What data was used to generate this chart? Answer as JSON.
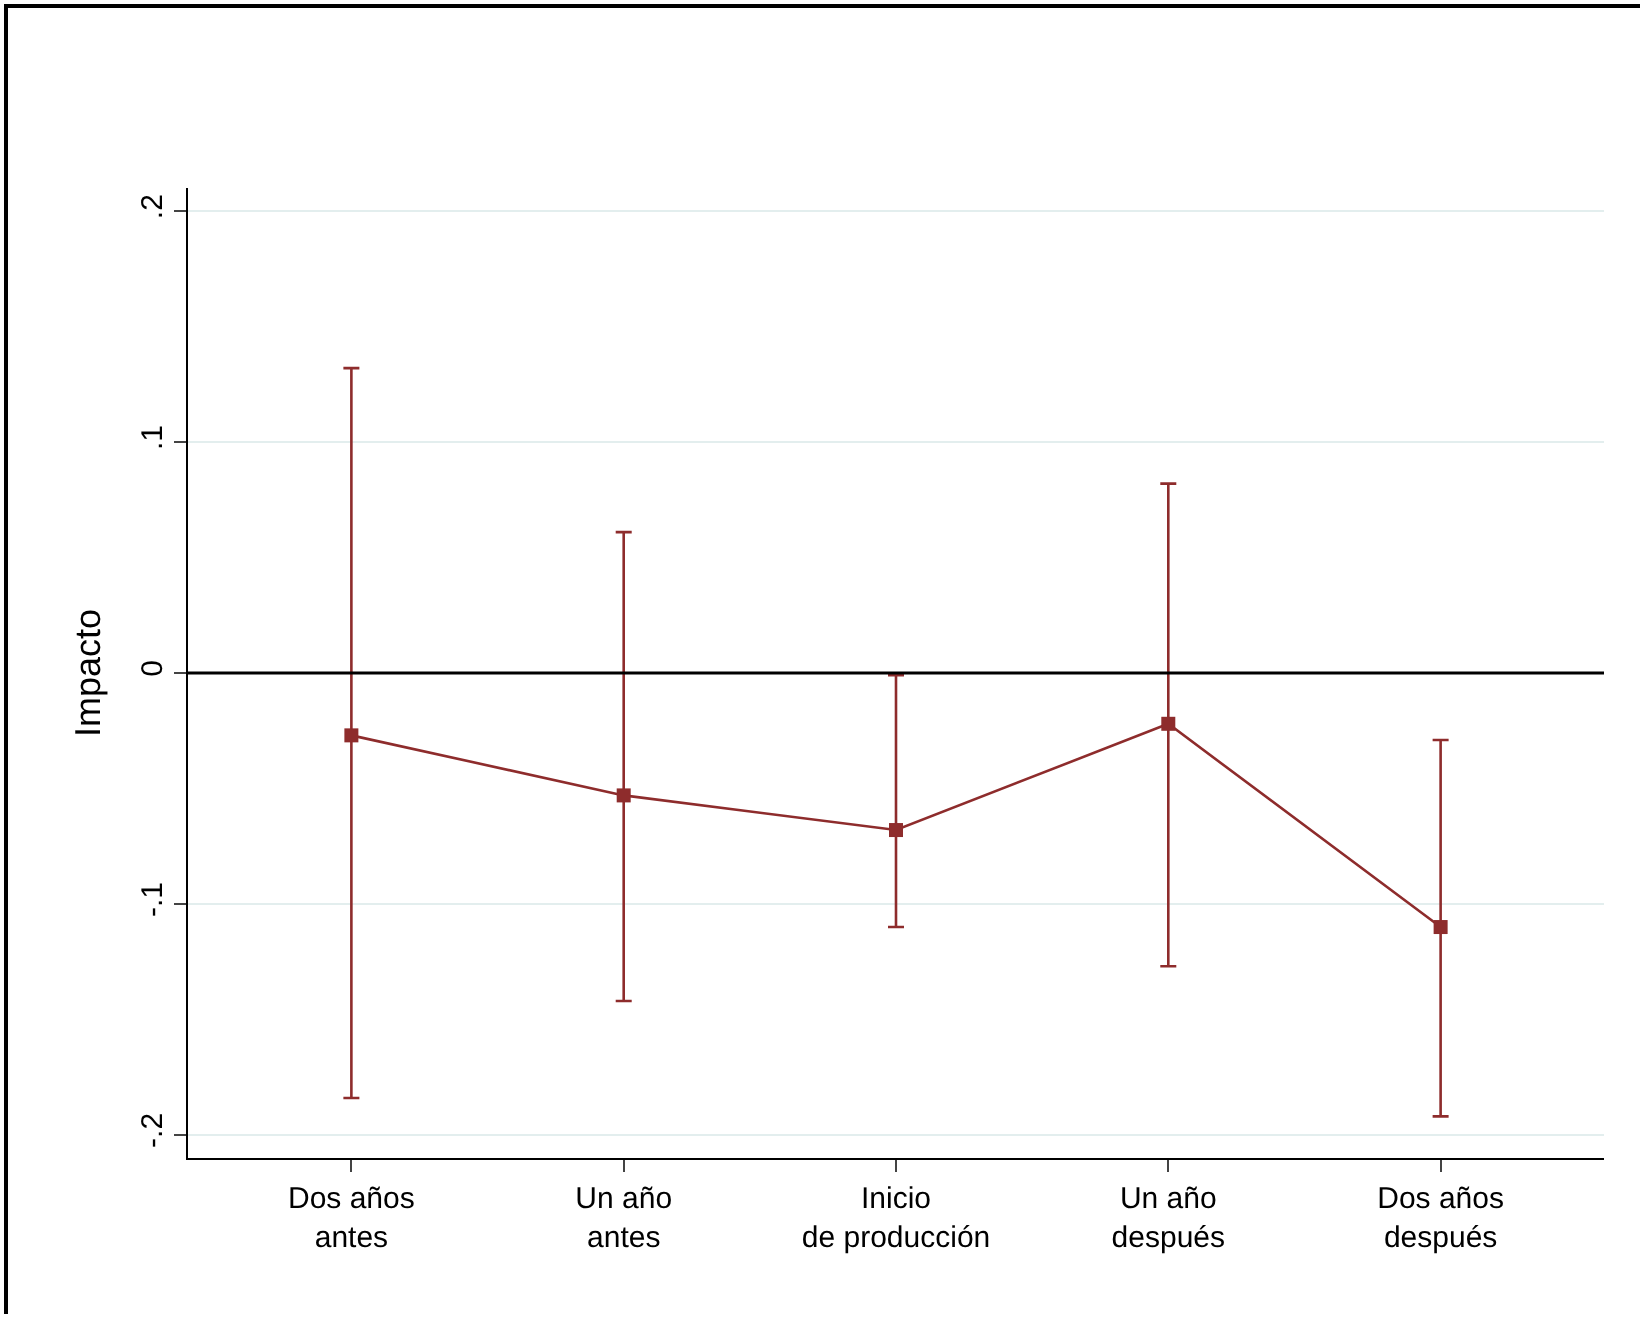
{
  "chart_data": {
    "type": "line",
    "ylabel": "Impacto",
    "categories": [
      "Dos años\nantes",
      "Un año\nantes",
      "Inicio\nde producción",
      "Un año\ndespués",
      "Dos años\ndespués"
    ],
    "series": [
      {
        "color": "#8e2c2c",
        "values": [
          -0.027,
          -0.053,
          -0.068,
          -0.022,
          -0.11
        ],
        "errors": [
          [
            -0.184,
            0.132
          ],
          [
            -0.142,
            0.061
          ],
          [
            -0.11,
            -0.001
          ],
          [
            -0.127,
            0.082
          ],
          [
            -0.192,
            -0.029
          ]
        ]
      }
    ],
    "ylim": [
      -0.21,
      0.21
    ],
    "yticks": [
      {
        "value": -0.2,
        "label": "-.2"
      },
      {
        "value": -0.1,
        "label": "-.1"
      },
      0,
      {
        "value": 0.1,
        "label": ".1"
      },
      {
        "value": 0.2,
        "label": ".2"
      }
    ],
    "grid": "y",
    "marker": "square",
    "line_style": "solid",
    "legend": false,
    "ref_lines": [
      {
        "axis": "y",
        "value": 0,
        "color": "#000000"
      }
    ]
  }
}
